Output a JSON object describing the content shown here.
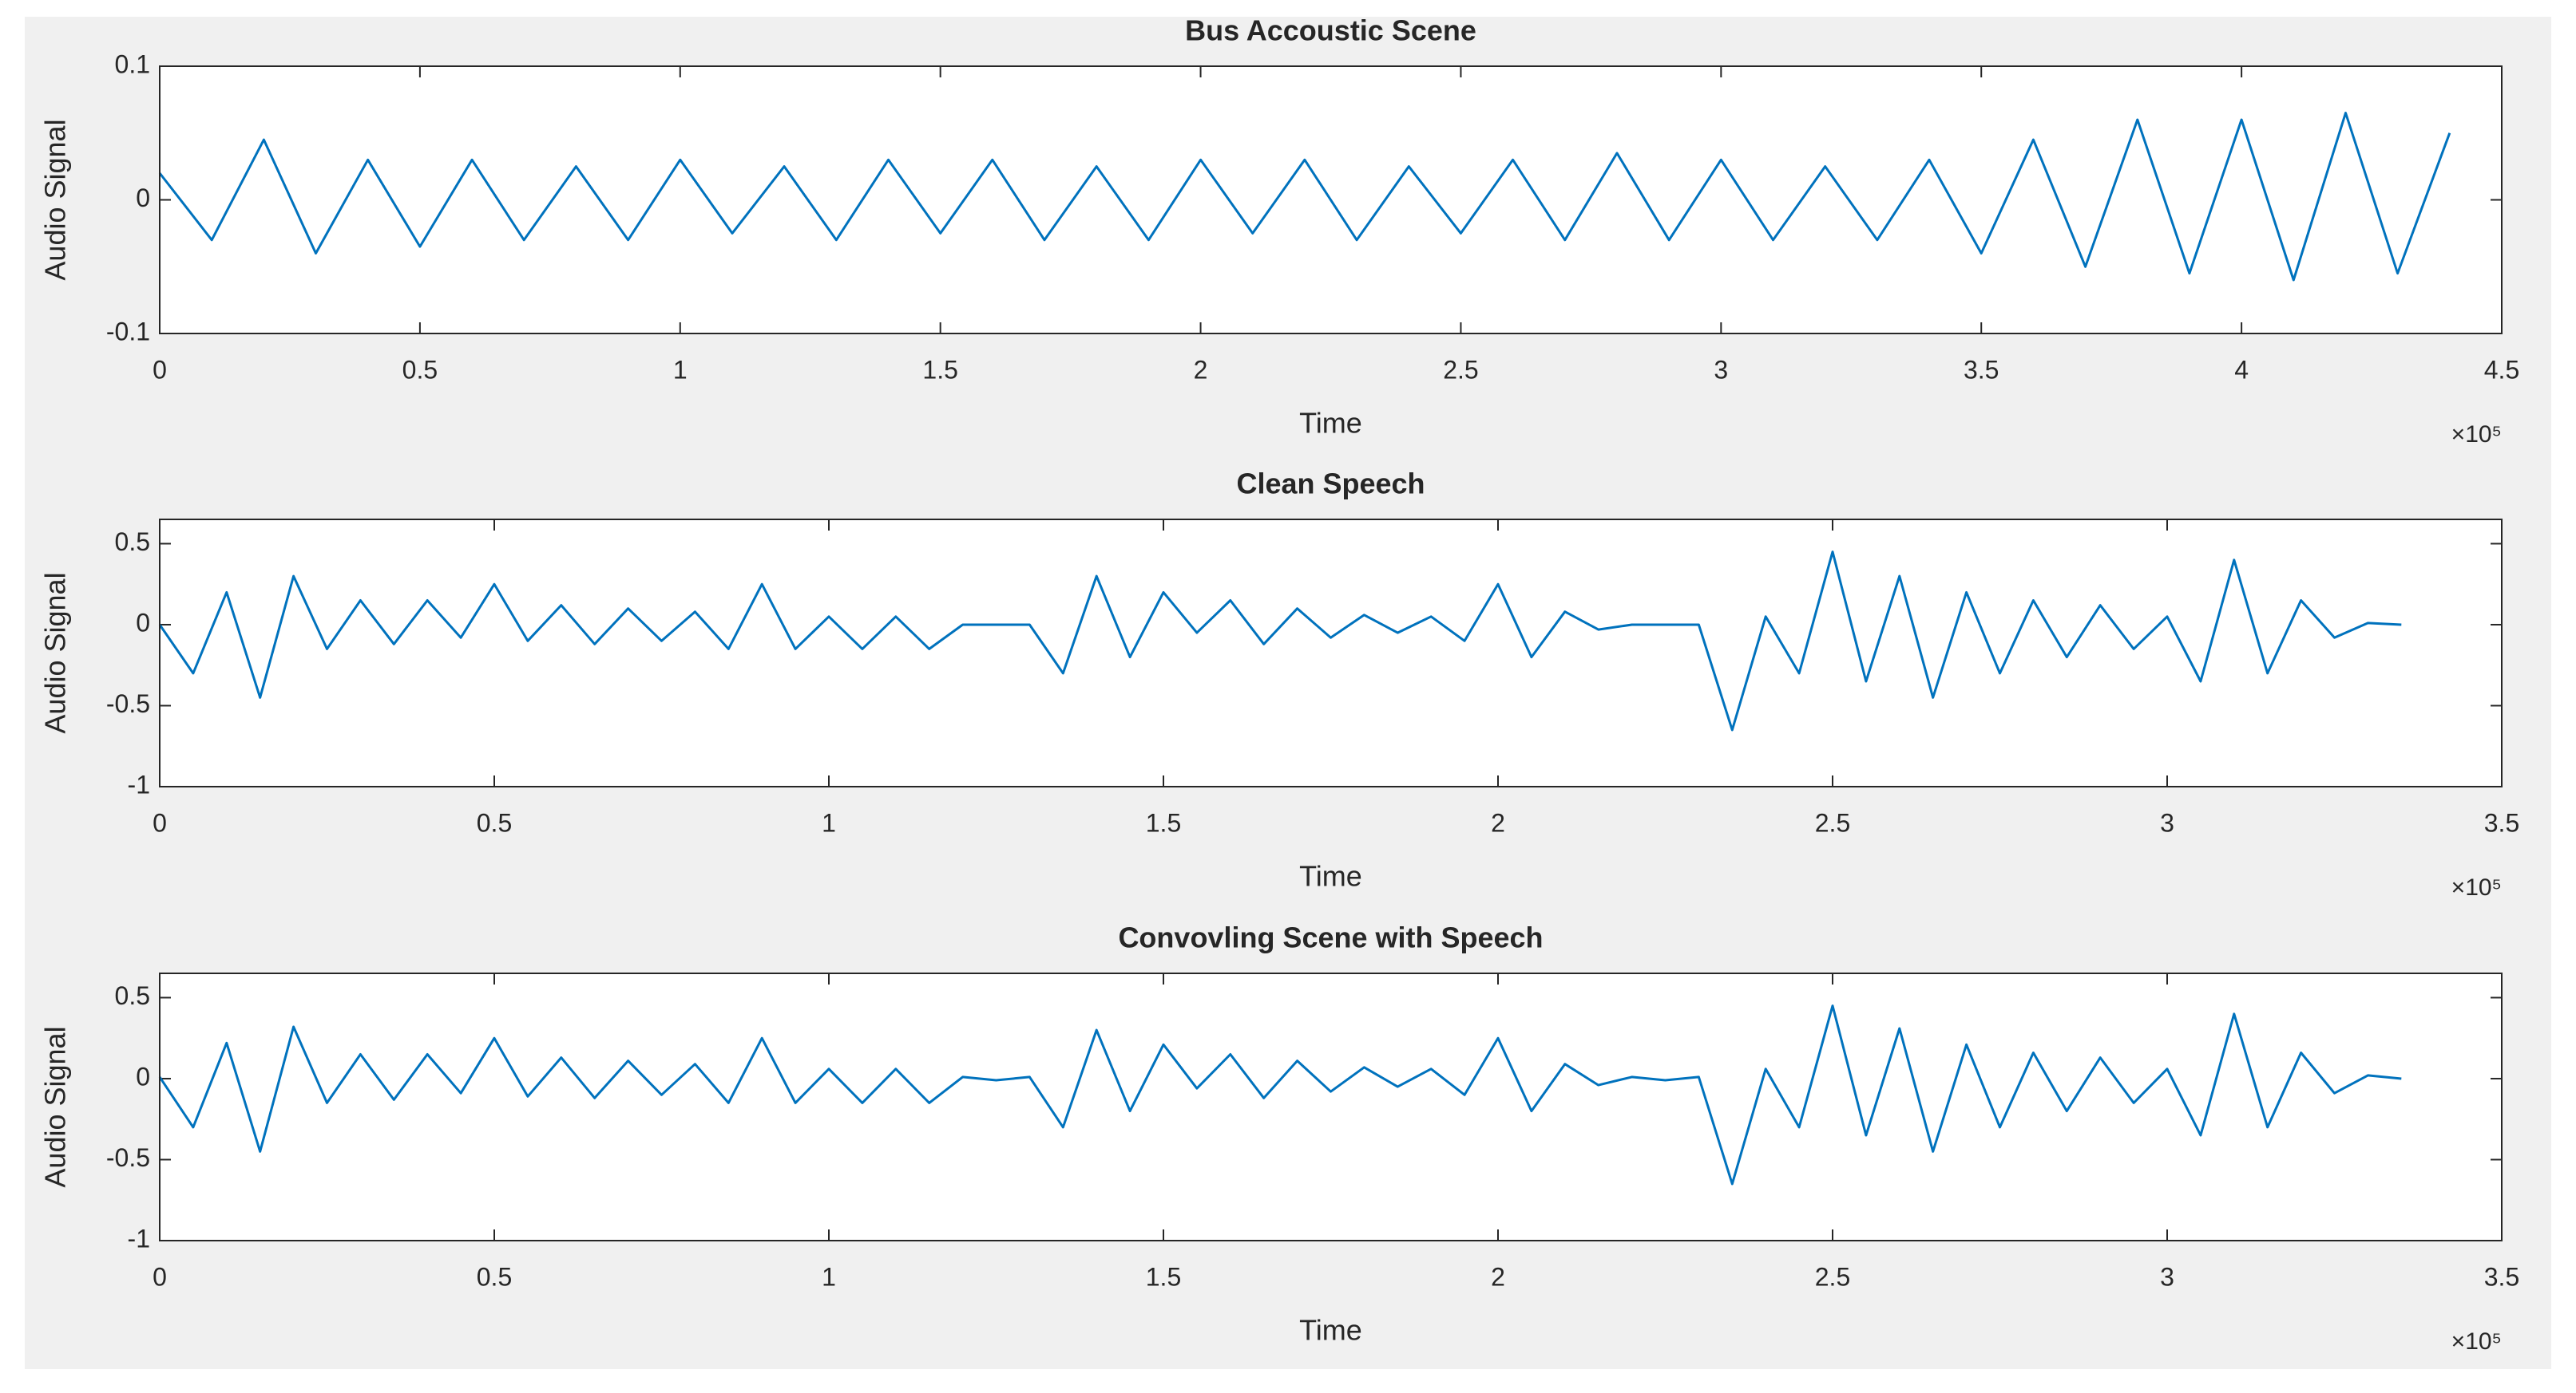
{
  "chart_data": [
    {
      "type": "line",
      "title": "Bus Accoustic Scene",
      "xlabel": "Time",
      "ylabel": "Audio Signal",
      "x_multiplier": "×10⁵",
      "color": "#0072bd",
      "xlim": [
        0,
        4.5
      ],
      "xticks": [
        0,
        0.5,
        1,
        1.5,
        2,
        2.5,
        3,
        3.5,
        4,
        4.5
      ],
      "ylim": [
        -0.1,
        0.1
      ],
      "yticks": [
        -0.1,
        0,
        0.1
      ],
      "x": [
        0,
        0.1,
        0.2,
        0.3,
        0.4,
        0.5,
        0.6,
        0.7,
        0.8,
        0.9,
        1,
        1.1,
        1.2,
        1.3,
        1.4,
        1.5,
        1.6,
        1.7,
        1.8,
        1.9,
        2,
        2.1,
        2.2,
        2.3,
        2.4,
        2.5,
        2.6,
        2.7,
        2.8,
        2.9,
        3,
        3.1,
        3.2,
        3.3,
        3.4,
        3.5,
        3.6,
        3.7,
        3.8,
        3.9,
        4,
        4.1,
        4.2,
        4.3,
        4.4
      ],
      "values": [
        0.02,
        -0.03,
        0.045,
        -0.04,
        0.03,
        -0.035,
        0.03,
        -0.03,
        0.025,
        -0.03,
        0.03,
        -0.025,
        0.025,
        -0.03,
        0.03,
        -0.025,
        0.03,
        -0.03,
        0.025,
        -0.03,
        0.03,
        -0.025,
        0.03,
        -0.03,
        0.025,
        -0.025,
        0.03,
        -0.03,
        0.035,
        -0.03,
        0.03,
        -0.03,
        0.025,
        -0.03,
        0.03,
        -0.04,
        0.045,
        -0.05,
        0.06,
        -0.055,
        0.06,
        -0.06,
        0.065,
        -0.055,
        0.05
      ]
    },
    {
      "type": "line",
      "title": "Clean Speech",
      "xlabel": "Time",
      "ylabel": "Audio Signal",
      "x_multiplier": "×10⁵",
      "color": "#0072bd",
      "xlim": [
        0,
        3.5
      ],
      "xticks": [
        0,
        0.5,
        1,
        1.5,
        2,
        2.5,
        3,
        3.5
      ],
      "ylim": [
        -1,
        0.65
      ],
      "yticks": [
        -1,
        -0.5,
        0,
        0.5
      ],
      "x": [
        0,
        0.05,
        0.1,
        0.15,
        0.2,
        0.25,
        0.3,
        0.35,
        0.4,
        0.45,
        0.5,
        0.55,
        0.6,
        0.65,
        0.7,
        0.75,
        0.8,
        0.85,
        0.9,
        0.95,
        1,
        1.05,
        1.1,
        1.15,
        1.2,
        1.25,
        1.3,
        1.35,
        1.4,
        1.45,
        1.5,
        1.55,
        1.6,
        1.65,
        1.7,
        1.75,
        1.8,
        1.85,
        1.9,
        1.95,
        2,
        2.05,
        2.1,
        2.15,
        2.2,
        2.25,
        2.3,
        2.35,
        2.4,
        2.45,
        2.5,
        2.55,
        2.6,
        2.65,
        2.7,
        2.75,
        2.8,
        2.85,
        2.9,
        2.95,
        3,
        3.05,
        3.1,
        3.15,
        3.2,
        3.25,
        3.3,
        3.35
      ],
      "values": [
        0,
        -0.3,
        0.2,
        -0.45,
        0.3,
        -0.15,
        0.15,
        -0.12,
        0.15,
        -0.08,
        0.25,
        -0.1,
        0.12,
        -0.12,
        0.1,
        -0.1,
        0.08,
        -0.15,
        0.25,
        -0.15,
        0.05,
        -0.15,
        0.05,
        -0.15,
        0,
        0,
        0,
        -0.3,
        0.3,
        -0.2,
        0.2,
        -0.05,
        0.15,
        -0.12,
        0.1,
        -0.08,
        0.06,
        -0.05,
        0.05,
        -0.1,
        0.25,
        -0.2,
        0.08,
        -0.03,
        0,
        0,
        0,
        -0.65,
        0.05,
        -0.3,
        0.45,
        -0.35,
        0.3,
        -0.45,
        0.2,
        -0.3,
        0.15,
        -0.2,
        0.12,
        -0.15,
        0.05,
        -0.35,
        0.4,
        -0.3,
        0.15,
        -0.08,
        0.01,
        0
      ]
    },
    {
      "type": "line",
      "title": "Convovling Scene with Speech",
      "xlabel": "Time",
      "ylabel": "Audio Signal",
      "x_multiplier": "×10⁵",
      "color": "#0072bd",
      "xlim": [
        0,
        3.5
      ],
      "xticks": [
        0,
        0.5,
        1,
        1.5,
        2,
        2.5,
        3,
        3.5
      ],
      "ylim": [
        -1,
        0.65
      ],
      "yticks": [
        -1,
        -0.5,
        0,
        0.5
      ],
      "x": [
        0,
        0.05,
        0.1,
        0.15,
        0.2,
        0.25,
        0.3,
        0.35,
        0.4,
        0.45,
        0.5,
        0.55,
        0.6,
        0.65,
        0.7,
        0.75,
        0.8,
        0.85,
        0.9,
        0.95,
        1,
        1.05,
        1.1,
        1.15,
        1.2,
        1.25,
        1.3,
        1.35,
        1.4,
        1.45,
        1.5,
        1.55,
        1.6,
        1.65,
        1.7,
        1.75,
        1.8,
        1.85,
        1.9,
        1.95,
        2,
        2.05,
        2.1,
        2.15,
        2.2,
        2.25,
        2.3,
        2.35,
        2.4,
        2.45,
        2.5,
        2.55,
        2.6,
        2.65,
        2.7,
        2.75,
        2.8,
        2.85,
        2.9,
        2.95,
        3,
        3.05,
        3.1,
        3.15,
        3.2,
        3.25,
        3.3,
        3.35
      ],
      "values": [
        0.01,
        -0.3,
        0.22,
        -0.45,
        0.32,
        -0.15,
        0.15,
        -0.13,
        0.15,
        -0.09,
        0.25,
        -0.11,
        0.13,
        -0.12,
        0.11,
        -0.1,
        0.09,
        -0.15,
        0.25,
        -0.15,
        0.06,
        -0.15,
        0.06,
        -0.15,
        0.01,
        -0.01,
        0.01,
        -0.3,
        0.3,
        -0.2,
        0.21,
        -0.06,
        0.15,
        -0.12,
        0.11,
        -0.08,
        0.07,
        -0.05,
        0.06,
        -0.1,
        0.25,
        -0.2,
        0.09,
        -0.04,
        0.01,
        -0.01,
        0.01,
        -0.65,
        0.06,
        -0.3,
        0.45,
        -0.35,
        0.31,
        -0.45,
        0.21,
        -0.3,
        0.16,
        -0.2,
        0.13,
        -0.15,
        0.06,
        -0.35,
        0.4,
        -0.3,
        0.16,
        -0.09,
        0.02,
        0
      ]
    }
  ]
}
